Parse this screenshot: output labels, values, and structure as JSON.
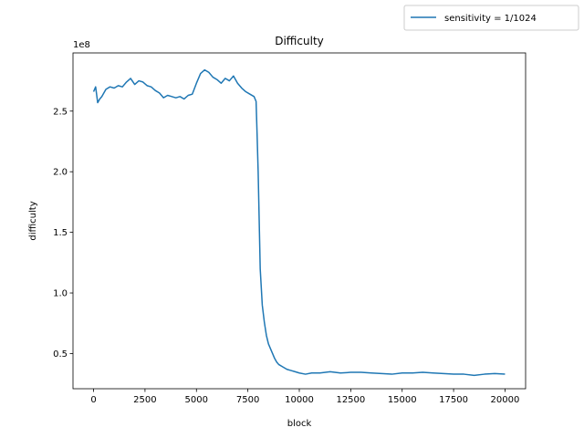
{
  "chart_data": {
    "type": "line",
    "title": "Difficulty",
    "xlabel": "block",
    "ylabel": "difficulty",
    "y_offset_label": "1e8",
    "xlim": [
      -1000,
      21000
    ],
    "ylim": [
      0.21,
      2.98
    ],
    "x_ticks": [
      0,
      2500,
      5000,
      7500,
      10000,
      12500,
      15000,
      17500,
      20000
    ],
    "x_tick_labels": [
      "0",
      "2500",
      "5000",
      "7500",
      "10000",
      "12500",
      "15000",
      "17500",
      "20000"
    ],
    "y_ticks": [
      0.5,
      1.0,
      1.5,
      2.0,
      2.5
    ],
    "y_tick_labels": [
      "0.5",
      "1.0",
      "1.5",
      "2.0",
      "2.5"
    ],
    "grid": false,
    "legend_position": "upper-right-outside",
    "series": [
      {
        "name": "sensitivity = 1/1024",
        "color": "#1f77b4",
        "x": [
          0,
          100,
          200,
          300,
          400,
          600,
          800,
          1000,
          1200,
          1400,
          1600,
          1800,
          2000,
          2200,
          2400,
          2600,
          2800,
          3000,
          3200,
          3400,
          3600,
          3800,
          4000,
          4200,
          4400,
          4600,
          4800,
          5000,
          5200,
          5400,
          5600,
          5800,
          6000,
          6200,
          6400,
          6600,
          6800,
          7000,
          7200,
          7400,
          7600,
          7800,
          7900,
          7950,
          8000,
          8050,
          8100,
          8200,
          8300,
          8400,
          8500,
          8600,
          8700,
          8800,
          8900,
          9000,
          9200,
          9400,
          9600,
          9800,
          10000,
          10300,
          10600,
          11000,
          11500,
          12000,
          12500,
          13000,
          13500,
          14000,
          14500,
          15000,
          15500,
          16000,
          16500,
          17000,
          17500,
          18000,
          18500,
          19000,
          19500,
          20000
        ],
        "values": [
          2.66,
          2.7,
          2.57,
          2.6,
          2.62,
          2.68,
          2.7,
          2.69,
          2.71,
          2.7,
          2.74,
          2.77,
          2.72,
          2.75,
          2.74,
          2.71,
          2.7,
          2.67,
          2.65,
          2.61,
          2.63,
          2.62,
          2.61,
          2.62,
          2.6,
          2.63,
          2.64,
          2.73,
          2.81,
          2.84,
          2.82,
          2.78,
          2.76,
          2.73,
          2.77,
          2.75,
          2.79,
          2.73,
          2.69,
          2.66,
          2.64,
          2.62,
          2.58,
          2.3,
          2.0,
          1.6,
          1.2,
          0.9,
          0.76,
          0.65,
          0.58,
          0.54,
          0.5,
          0.46,
          0.43,
          0.41,
          0.39,
          0.37,
          0.36,
          0.35,
          0.34,
          0.33,
          0.34,
          0.34,
          0.35,
          0.34,
          0.345,
          0.345,
          0.34,
          0.335,
          0.33,
          0.34,
          0.34,
          0.345,
          0.34,
          0.335,
          0.33,
          0.33,
          0.32,
          0.33,
          0.335,
          0.33
        ]
      }
    ]
  }
}
